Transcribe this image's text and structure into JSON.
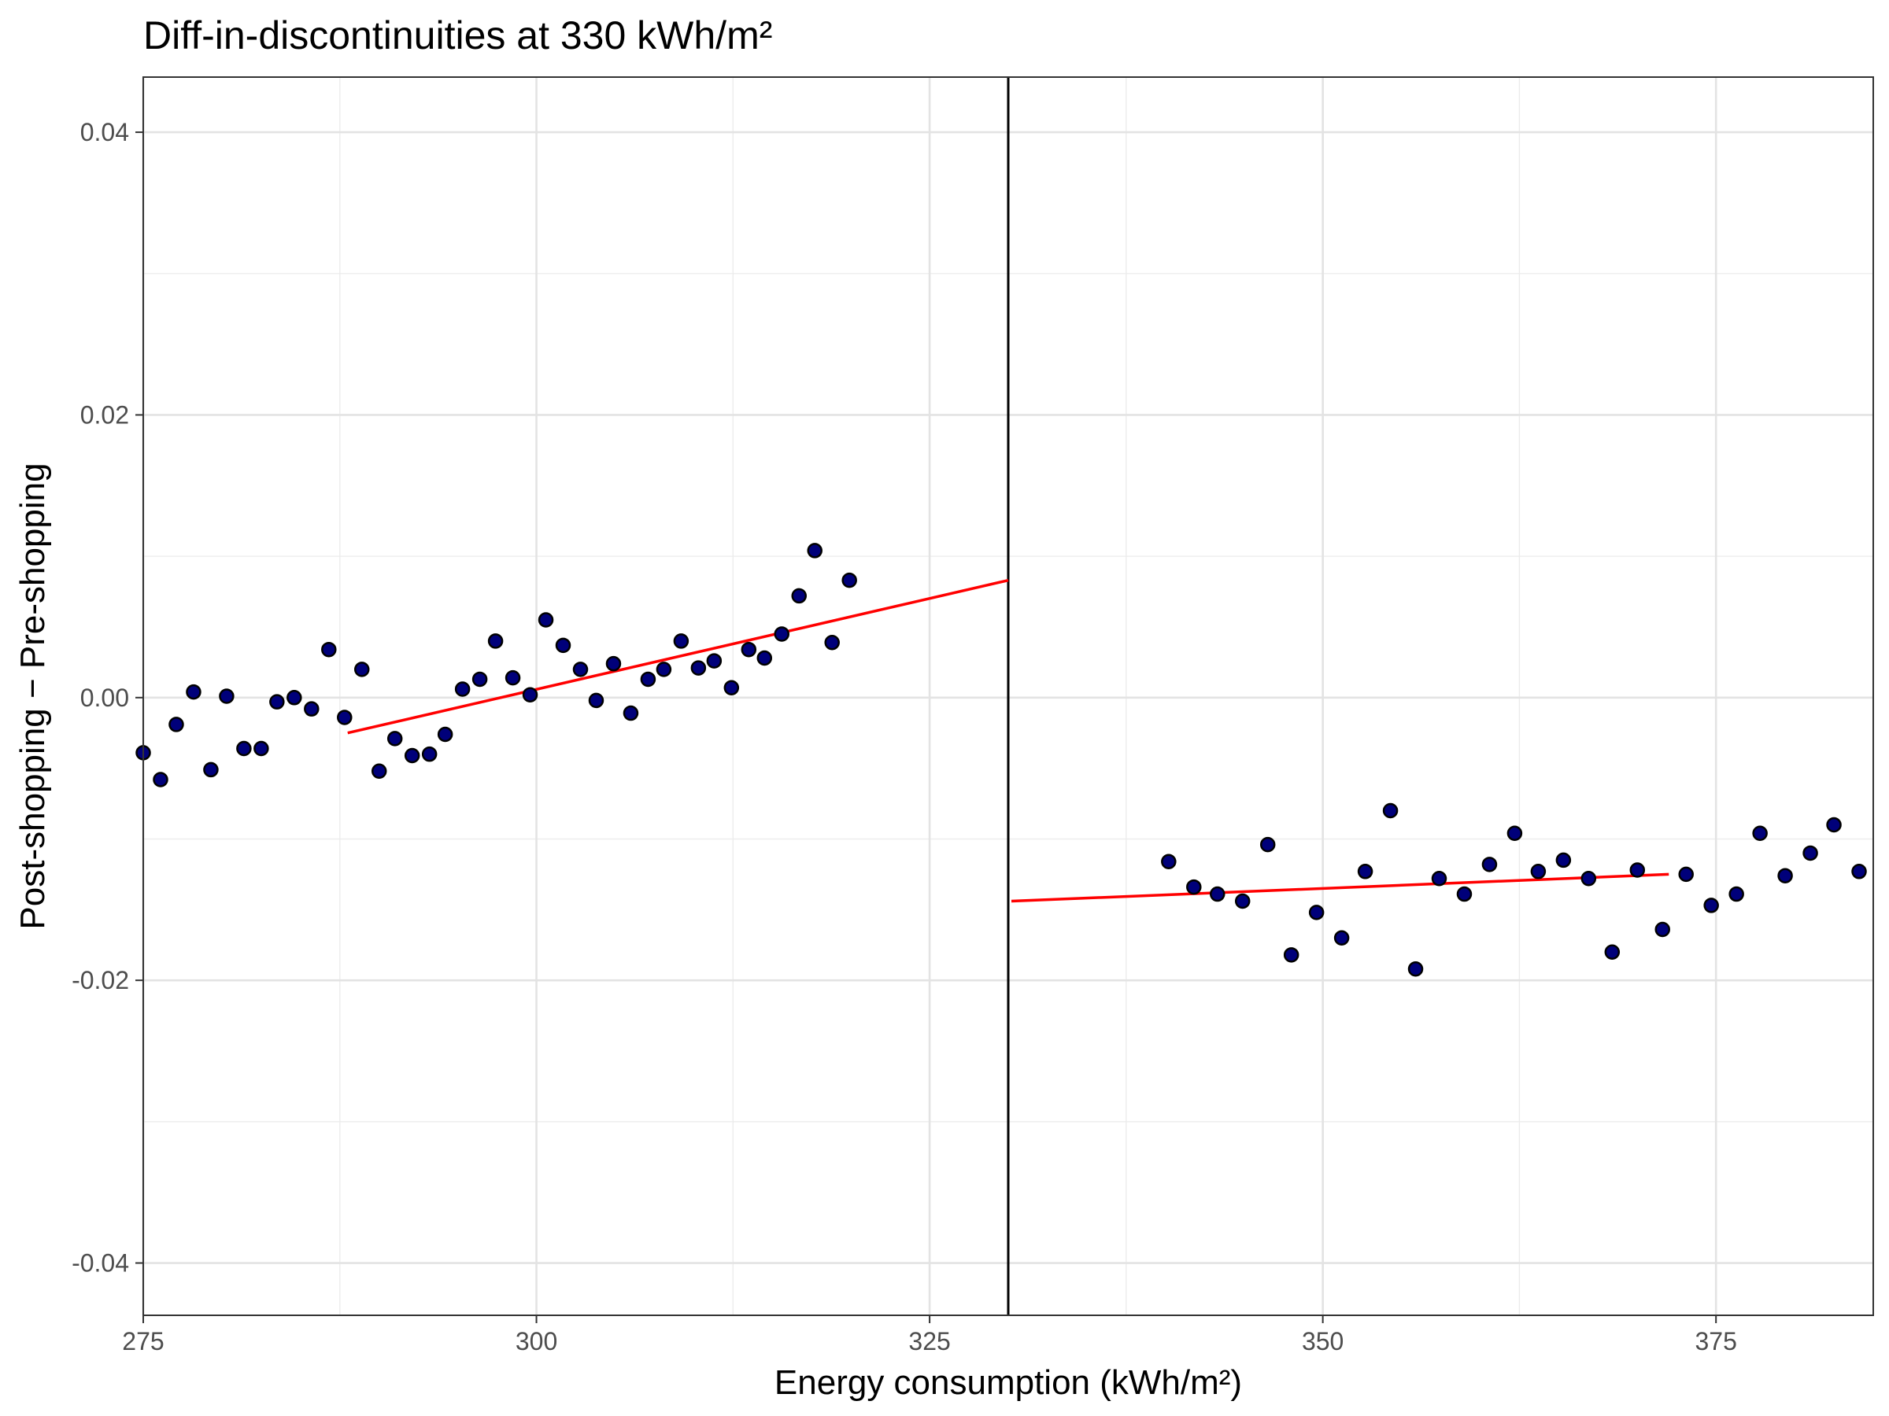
{
  "chart_data": {
    "type": "scatter",
    "title": "Diff-in-discontinuities at 330 kWh/m²",
    "xlabel": "Energy consumption (kWh/m²)",
    "ylabel": "Post-shopping − Pre-shopping",
    "xlim": [
      275,
      385
    ],
    "ylim": [
      -0.0437,
      0.0439
    ],
    "x_ticks": [
      275,
      300,
      325,
      350,
      375
    ],
    "x_tick_labels": [
      "275",
      "300",
      "325",
      "350",
      "375"
    ],
    "x_minor_gridlines": [
      287.5,
      312.5,
      337.5,
      362.5
    ],
    "y_ticks": [
      -0.04,
      -0.02,
      0.0,
      0.02,
      0.04
    ],
    "y_tick_labels": [
      "-0.04",
      "-0.02",
      "0.00",
      "0.02",
      "0.04"
    ],
    "y_minor_gridlines": [
      -0.03,
      -0.01,
      0.01,
      0.03
    ],
    "grid": true,
    "cutoff": 330,
    "point_color": "#00007a",
    "point_outline": "#000000",
    "fit_color": "#ff0000",
    "cutoff_line_color": "#000000",
    "series": [
      {
        "points": [
          [
            275.0,
            -0.0039
          ],
          [
            276.1,
            -0.0058
          ],
          [
            277.1,
            -0.0019
          ],
          [
            278.2,
            0.0004
          ],
          [
            279.3,
            -0.0051
          ],
          [
            280.3,
            0.0001
          ],
          [
            281.4,
            -0.0036
          ],
          [
            282.5,
            -0.0036
          ],
          [
            283.5,
            -0.0003
          ],
          [
            284.6,
            0.0
          ],
          [
            285.7,
            -0.0008
          ],
          [
            286.8,
            0.0034
          ],
          [
            287.8,
            -0.0014
          ],
          [
            288.9,
            0.002
          ],
          [
            290.0,
            -0.0052
          ],
          [
            291.0,
            -0.0029
          ],
          [
            292.1,
            -0.0041
          ],
          [
            293.2,
            -0.004
          ],
          [
            294.2,
            -0.0026
          ],
          [
            295.3,
            0.0006
          ],
          [
            296.4,
            0.0013
          ],
          [
            297.4,
            0.004
          ],
          [
            298.5,
            0.0014
          ],
          [
            299.6,
            0.0002
          ],
          [
            300.6,
            0.0055
          ],
          [
            301.7,
            0.0037
          ],
          [
            302.8,
            0.002
          ],
          [
            303.8,
            -0.0002
          ],
          [
            304.9,
            0.0024
          ],
          [
            306.0,
            -0.0011
          ],
          [
            307.1,
            0.0013
          ],
          [
            308.1,
            0.002
          ],
          [
            309.2,
            0.004
          ],
          [
            310.3,
            0.0021
          ],
          [
            311.3,
            0.0026
          ],
          [
            312.4,
            0.0007
          ],
          [
            313.5,
            0.0034
          ],
          [
            314.5,
            0.0028
          ],
          [
            315.6,
            0.0045
          ],
          [
            316.7,
            0.0072
          ],
          [
            317.7,
            0.0104
          ],
          [
            318.8,
            0.0039
          ],
          [
            319.9,
            0.0083
          ],
          [
            340.2,
            -0.0116
          ],
          [
            341.8,
            -0.0134
          ],
          [
            343.3,
            -0.0139
          ],
          [
            344.9,
            -0.0144
          ],
          [
            346.5,
            -0.0104
          ],
          [
            348.0,
            -0.0182
          ],
          [
            349.6,
            -0.0152
          ],
          [
            351.2,
            -0.017
          ],
          [
            352.7,
            -0.0123
          ],
          [
            354.3,
            -0.008
          ],
          [
            355.9,
            -0.0192
          ],
          [
            357.4,
            -0.0128
          ],
          [
            359.0,
            -0.0139
          ],
          [
            360.6,
            -0.0118
          ],
          [
            362.2,
            -0.0096
          ],
          [
            363.7,
            -0.0123
          ],
          [
            365.3,
            -0.0115
          ],
          [
            366.9,
            -0.0128
          ],
          [
            368.4,
            -0.018
          ],
          [
            370.0,
            -0.0122
          ],
          [
            371.6,
            -0.0164
          ],
          [
            373.1,
            -0.0125
          ],
          [
            374.7,
            -0.0147
          ],
          [
            376.3,
            -0.0139
          ],
          [
            377.8,
            -0.0096
          ],
          [
            379.4,
            -0.0126
          ],
          [
            381.0,
            -0.011
          ],
          [
            382.5,
            -0.009
          ],
          [
            384.1,
            -0.0123
          ]
        ]
      }
    ],
    "fit_lines": [
      {
        "x": [
          288.0,
          330.0
        ],
        "y": [
          -0.0025,
          0.0083
        ]
      },
      {
        "x": [
          330.2,
          372.0
        ],
        "y": [
          -0.0144,
          -0.0125
        ]
      }
    ]
  }
}
